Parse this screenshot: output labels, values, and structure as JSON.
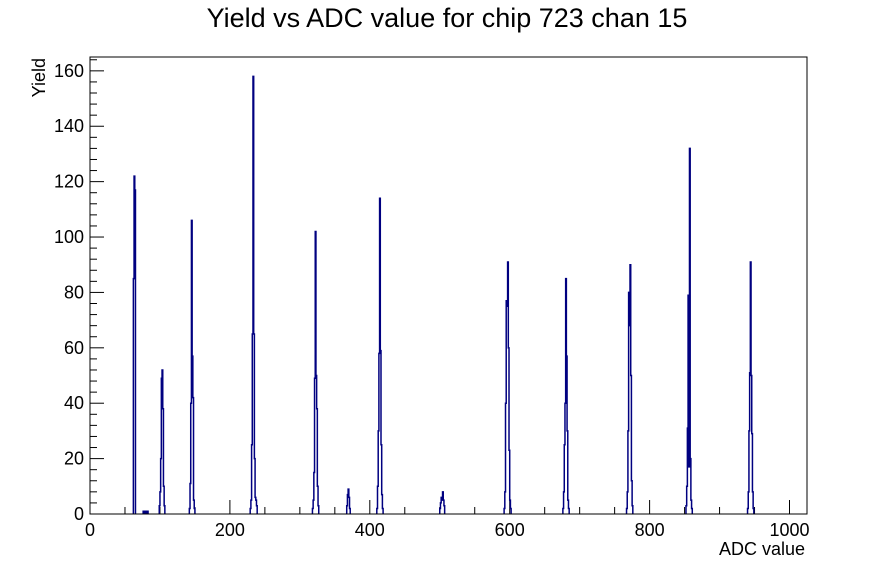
{
  "chart_data": {
    "type": "bar",
    "title": "Yield vs ADC value for chip 723 chan 15",
    "xlabel": "ADC value",
    "ylabel": "Yield",
    "xlim": [
      0,
      1025
    ],
    "ylim": [
      0,
      165
    ],
    "xticks": [
      0,
      200,
      400,
      600,
      800,
      1000
    ],
    "yticks": [
      0,
      20,
      40,
      60,
      80,
      100,
      120,
      140,
      160
    ],
    "grid": false,
    "legend": "none",
    "series_color": "#000080",
    "bin_width": 1,
    "bins": [
      {
        "x": 62,
        "y": 85
      },
      {
        "x": 63,
        "y": 122
      },
      {
        "x": 64,
        "y": 117
      },
      {
        "x": 76,
        "y": 1
      },
      {
        "x": 78,
        "y": 1
      },
      {
        "x": 80,
        "y": 1
      },
      {
        "x": 82,
        "y": 1
      },
      {
        "x": 99,
        "y": 3
      },
      {
        "x": 100,
        "y": 8
      },
      {
        "x": 101,
        "y": 20
      },
      {
        "x": 102,
        "y": 49
      },
      {
        "x": 103,
        "y": 52
      },
      {
        "x": 104,
        "y": 38
      },
      {
        "x": 105,
        "y": 10
      },
      {
        "x": 106,
        "y": 3
      },
      {
        "x": 142,
        "y": 2
      },
      {
        "x": 143,
        "y": 11
      },
      {
        "x": 144,
        "y": 40
      },
      {
        "x": 145,
        "y": 106
      },
      {
        "x": 146,
        "y": 57
      },
      {
        "x": 147,
        "y": 42
      },
      {
        "x": 148,
        "y": 5
      },
      {
        "x": 149,
        "y": 2
      },
      {
        "x": 229,
        "y": 2
      },
      {
        "x": 230,
        "y": 5
      },
      {
        "x": 231,
        "y": 25
      },
      {
        "x": 232,
        "y": 65
      },
      {
        "x": 233,
        "y": 158
      },
      {
        "x": 234,
        "y": 65
      },
      {
        "x": 235,
        "y": 20
      },
      {
        "x": 236,
        "y": 6
      },
      {
        "x": 237,
        "y": 5
      },
      {
        "x": 238,
        "y": 3
      },
      {
        "x": 318,
        "y": 2
      },
      {
        "x": 319,
        "y": 5
      },
      {
        "x": 320,
        "y": 15
      },
      {
        "x": 321,
        "y": 49
      },
      {
        "x": 322,
        "y": 102
      },
      {
        "x": 323,
        "y": 50
      },
      {
        "x": 324,
        "y": 38
      },
      {
        "x": 325,
        "y": 10
      },
      {
        "x": 326,
        "y": 3
      },
      {
        "x": 367,
        "y": 3
      },
      {
        "x": 368,
        "y": 7
      },
      {
        "x": 369,
        "y": 9
      },
      {
        "x": 370,
        "y": 6
      },
      {
        "x": 371,
        "y": 2
      },
      {
        "x": 410,
        "y": 2
      },
      {
        "x": 411,
        "y": 10
      },
      {
        "x": 412,
        "y": 30
      },
      {
        "x": 413,
        "y": 58
      },
      {
        "x": 414,
        "y": 114
      },
      {
        "x": 415,
        "y": 59
      },
      {
        "x": 416,
        "y": 25
      },
      {
        "x": 417,
        "y": 7
      },
      {
        "x": 418,
        "y": 2
      },
      {
        "x": 500,
        "y": 2
      },
      {
        "x": 501,
        "y": 4
      },
      {
        "x": 502,
        "y": 6
      },
      {
        "x": 503,
        "y": 5
      },
      {
        "x": 504,
        "y": 8
      },
      {
        "x": 505,
        "y": 5
      },
      {
        "x": 506,
        "y": 3
      },
      {
        "x": 592,
        "y": 2
      },
      {
        "x": 593,
        "y": 8
      },
      {
        "x": 594,
        "y": 40
      },
      {
        "x": 595,
        "y": 77
      },
      {
        "x": 596,
        "y": 75
      },
      {
        "x": 597,
        "y": 91
      },
      {
        "x": 598,
        "y": 60
      },
      {
        "x": 599,
        "y": 23
      },
      {
        "x": 600,
        "y": 5
      },
      {
        "x": 601,
        "y": 2
      },
      {
        "x": 676,
        "y": 2
      },
      {
        "x": 677,
        "y": 8
      },
      {
        "x": 678,
        "y": 25
      },
      {
        "x": 679,
        "y": 40
      },
      {
        "x": 680,
        "y": 85
      },
      {
        "x": 681,
        "y": 57
      },
      {
        "x": 682,
        "y": 30
      },
      {
        "x": 683,
        "y": 5
      },
      {
        "x": 684,
        "y": 2
      },
      {
        "x": 767,
        "y": 2
      },
      {
        "x": 768,
        "y": 8
      },
      {
        "x": 769,
        "y": 30
      },
      {
        "x": 770,
        "y": 80
      },
      {
        "x": 771,
        "y": 68
      },
      {
        "x": 772,
        "y": 90
      },
      {
        "x": 773,
        "y": 50
      },
      {
        "x": 774,
        "y": 12
      },
      {
        "x": 775,
        "y": 3
      },
      {
        "x": 852,
        "y": 3
      },
      {
        "x": 853,
        "y": 10
      },
      {
        "x": 854,
        "y": 31
      },
      {
        "x": 855,
        "y": 79
      },
      {
        "x": 856,
        "y": 17
      },
      {
        "x": 857,
        "y": 132
      },
      {
        "x": 858,
        "y": 20
      },
      {
        "x": 859,
        "y": 5
      },
      {
        "x": 860,
        "y": 2
      },
      {
        "x": 940,
        "y": 2
      },
      {
        "x": 941,
        "y": 8
      },
      {
        "x": 942,
        "y": 30
      },
      {
        "x": 943,
        "y": 51
      },
      {
        "x": 944,
        "y": 91
      },
      {
        "x": 945,
        "y": 50
      },
      {
        "x": 946,
        "y": 29
      },
      {
        "x": 947,
        "y": 8
      },
      {
        "x": 948,
        "y": 2
      }
    ]
  }
}
